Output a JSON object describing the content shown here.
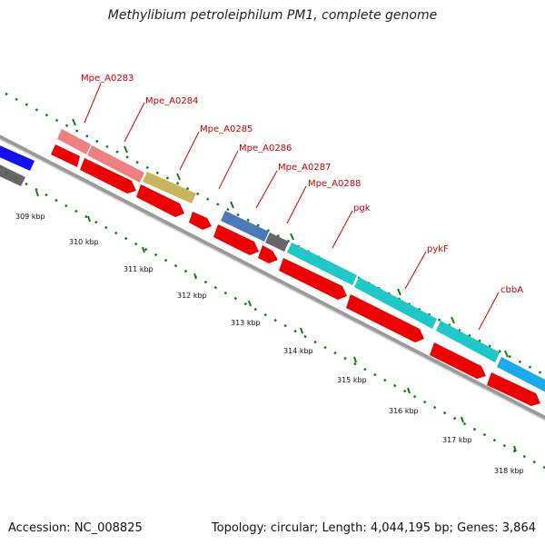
{
  "title": "Methylibium petroleiphilum PM1, complete genome",
  "footer": {
    "accession": "Accession: NC_008825",
    "topology": "Topology: circular; Length: 4,044,195 bp; Genes: 3,864"
  },
  "colors": {
    "background": "#ffffff",
    "backbone": "#9a9a9a",
    "tick": "#1a7a1a",
    "label": "#cc0000",
    "cds": "#ee0000"
  },
  "ruler": {
    "unit": "kbp",
    "labels": [
      "309 kbp",
      "310 kbp",
      "311 kbp",
      "312 kbp",
      "313 kbp",
      "314 kbp",
      "315 kbp",
      "316 kbp",
      "317 kbp",
      "318 kbp"
    ]
  },
  "genes": [
    {
      "name": "Mpe_A0283",
      "color": "#f08080"
    },
    {
      "name": "Mpe_A0284",
      "color": "#f08080"
    },
    {
      "name": "Mpe_A0285",
      "color": "#c8b45a"
    },
    {
      "name": "Mpe_A0286",
      "color": "#4a7ab8"
    },
    {
      "name": "Mpe_A0287",
      "color": "#666666"
    },
    {
      "name": "Mpe_A0288",
      "color": "#1ec8c8"
    },
    {
      "name": "pgk",
      "color": "#1ec8c8"
    },
    {
      "name": "pykF",
      "color": "#1ec8c8"
    },
    {
      "name": "cbbA",
      "color": "#1aaaee"
    }
  ]
}
